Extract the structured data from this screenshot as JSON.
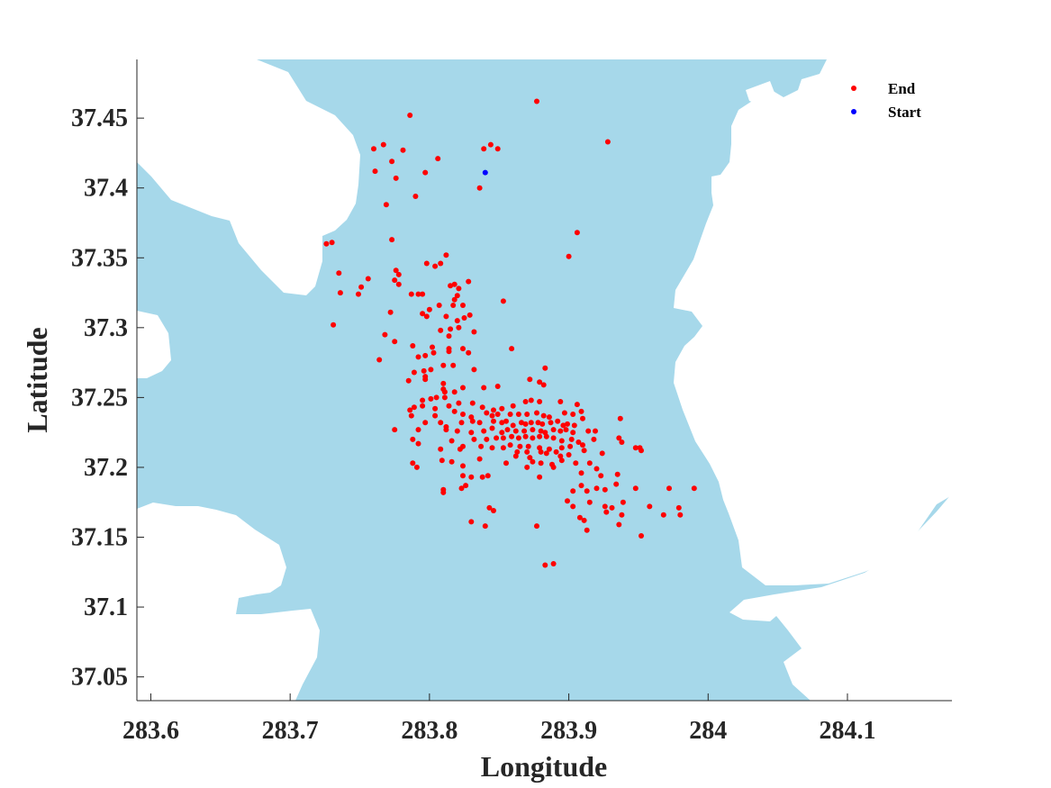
{
  "chart_data": {
    "type": "scatter",
    "xlabel": "Longitude",
    "ylabel": "Latitude",
    "xlim": [
      283.59,
      284.175
    ],
    "ylim": [
      37.033,
      37.492
    ],
    "xticks": [
      283.6,
      283.7,
      283.8,
      283.9,
      284,
      284.1
    ],
    "xtick_labels": [
      "283.6",
      "283.7",
      "283.8",
      "283.9",
      "284",
      "284.1"
    ],
    "yticks": [
      37.05,
      37.1,
      37.15,
      37.2,
      37.25,
      37.3,
      37.35,
      37.4,
      37.45
    ],
    "ytick_labels": [
      "37.05",
      "37.1",
      "37.15",
      "37.2",
      "37.25",
      "37.3",
      "37.35",
      "37.4",
      "37.45"
    ],
    "grid": false,
    "legend_position": "top-right",
    "water_color": "#a6d8ea",
    "land_color": "#ffffff",
    "series": [
      {
        "name": "End",
        "color": "#ff0000",
        "points": [
          [
            283.877,
            37.462
          ],
          [
            283.786,
            37.452
          ],
          [
            283.928,
            37.433
          ],
          [
            283.76,
            37.428
          ],
          [
            283.767,
            37.431
          ],
          [
            283.781,
            37.427
          ],
          [
            283.844,
            37.431
          ],
          [
            283.839,
            37.428
          ],
          [
            283.849,
            37.428
          ],
          [
            283.773,
            37.419
          ],
          [
            283.806,
            37.421
          ],
          [
            283.761,
            37.412
          ],
          [
            283.776,
            37.407
          ],
          [
            283.797,
            37.411
          ],
          [
            283.836,
            37.4
          ],
          [
            283.79,
            37.394
          ],
          [
            283.769,
            37.388
          ],
          [
            283.906,
            37.368
          ],
          [
            283.773,
            37.363
          ],
          [
            283.726,
            37.36
          ],
          [
            283.73,
            37.361
          ],
          [
            283.812,
            37.352
          ],
          [
            283.9,
            37.351
          ],
          [
            283.798,
            37.346
          ],
          [
            283.804,
            37.344
          ],
          [
            283.808,
            37.346
          ],
          [
            283.735,
            37.339
          ],
          [
            283.776,
            37.341
          ],
          [
            283.778,
            37.338
          ],
          [
            283.775,
            37.334
          ],
          [
            283.756,
            37.335
          ],
          [
            283.751,
            37.329
          ],
          [
            283.818,
            37.331
          ],
          [
            283.787,
            37.324
          ],
          [
            283.792,
            37.324
          ],
          [
            283.795,
            37.324
          ],
          [
            283.778,
            37.331
          ],
          [
            283.815,
            37.33
          ],
          [
            283.821,
            37.328
          ],
          [
            283.828,
            37.333
          ],
          [
            283.82,
            37.323
          ],
          [
            283.818,
            37.32
          ],
          [
            283.736,
            37.325
          ],
          [
            283.749,
            37.324
          ],
          [
            283.8,
            37.313
          ],
          [
            283.807,
            37.316
          ],
          [
            283.817,
            37.316
          ],
          [
            283.824,
            37.316
          ],
          [
            283.853,
            37.319
          ],
          [
            283.772,
            37.311
          ],
          [
            283.795,
            37.31
          ],
          [
            283.798,
            37.308
          ],
          [
            283.812,
            37.308
          ],
          [
            283.825,
            37.307
          ],
          [
            283.829,
            37.309
          ],
          [
            283.82,
            37.305
          ],
          [
            283.815,
            37.299
          ],
          [
            283.808,
            37.298
          ],
          [
            283.731,
            37.302
          ],
          [
            283.821,
            37.3
          ],
          [
            283.832,
            37.297
          ],
          [
            283.768,
            37.295
          ],
          [
            283.814,
            37.294
          ],
          [
            283.775,
            37.29
          ],
          [
            283.788,
            37.287
          ],
          [
            283.802,
            37.286
          ],
          [
            283.814,
            37.285
          ],
          [
            283.824,
            37.285
          ],
          [
            283.803,
            37.282
          ],
          [
            283.797,
            37.28
          ],
          [
            283.792,
            37.279
          ],
          [
            283.814,
            37.283
          ],
          [
            283.828,
            37.282
          ],
          [
            283.859,
            37.285
          ],
          [
            283.764,
            37.277
          ],
          [
            283.81,
            37.273
          ],
          [
            283.817,
            37.273
          ],
          [
            283.832,
            37.27
          ],
          [
            283.801,
            37.27
          ],
          [
            283.796,
            37.269
          ],
          [
            283.789,
            37.268
          ],
          [
            283.797,
            37.265
          ],
          [
            283.797,
            37.263
          ],
          [
            283.81,
            37.26
          ],
          [
            283.811,
            37.254
          ],
          [
            283.818,
            37.254
          ],
          [
            283.824,
            37.257
          ],
          [
            283.811,
            37.25
          ],
          [
            283.805,
            37.25
          ],
          [
            283.801,
            37.249
          ],
          [
            283.795,
            37.248
          ],
          [
            283.785,
            37.262
          ],
          [
            283.81,
            37.256
          ],
          [
            283.839,
            37.257
          ],
          [
            283.849,
            37.258
          ],
          [
            283.879,
            37.261
          ],
          [
            283.882,
            37.259
          ],
          [
            283.872,
            37.263
          ],
          [
            283.883,
            37.271
          ],
          [
            283.894,
            37.247
          ],
          [
            283.879,
            37.247
          ],
          [
            283.873,
            37.248
          ],
          [
            283.869,
            37.247
          ],
          [
            283.86,
            37.244
          ],
          [
            283.852,
            37.242
          ],
          [
            283.846,
            37.241
          ],
          [
            283.838,
            37.243
          ],
          [
            283.831,
            37.246
          ],
          [
            283.821,
            37.246
          ],
          [
            283.814,
            37.244
          ],
          [
            283.804,
            37.242
          ],
          [
            283.795,
            37.244
          ],
          [
            283.789,
            37.243
          ],
          [
            283.786,
            37.241
          ],
          [
            283.787,
            37.237
          ],
          [
            283.804,
            37.237
          ],
          [
            283.818,
            37.24
          ],
          [
            283.824,
            37.238
          ],
          [
            283.83,
            37.236
          ],
          [
            283.841,
            37.239
          ],
          [
            283.845,
            37.237
          ],
          [
            283.849,
            37.238
          ],
          [
            283.858,
            37.238
          ],
          [
            283.864,
            37.238
          ],
          [
            283.87,
            37.238
          ],
          [
            283.877,
            37.239
          ],
          [
            283.882,
            37.237
          ],
          [
            283.886,
            37.236
          ],
          [
            283.897,
            37.239
          ],
          [
            283.903,
            37.238
          ],
          [
            283.906,
            37.245
          ],
          [
            283.909,
            37.24
          ],
          [
            283.797,
            37.232
          ],
          [
            283.808,
            37.232
          ],
          [
            283.812,
            37.229
          ],
          [
            283.823,
            37.232
          ],
          [
            283.831,
            37.233
          ],
          [
            283.836,
            37.232
          ],
          [
            283.846,
            37.233
          ],
          [
            283.852,
            37.232
          ],
          [
            283.855,
            37.233
          ],
          [
            283.86,
            37.23
          ],
          [
            283.866,
            37.232
          ],
          [
            283.869,
            37.231
          ],
          [
            283.873,
            37.232
          ],
          [
            283.878,
            37.232
          ],
          [
            283.881,
            37.231
          ],
          [
            283.887,
            37.232
          ],
          [
            283.892,
            37.233
          ],
          [
            283.896,
            37.23
          ],
          [
            283.899,
            37.231
          ],
          [
            283.904,
            37.23
          ],
          [
            283.91,
            37.235
          ],
          [
            283.937,
            37.235
          ],
          [
            283.775,
            37.227
          ],
          [
            283.792,
            37.227
          ],
          [
            283.812,
            37.227
          ],
          [
            283.82,
            37.226
          ],
          [
            283.83,
            37.225
          ],
          [
            283.839,
            37.226
          ],
          [
            283.845,
            37.228
          ],
          [
            283.852,
            37.225
          ],
          [
            283.856,
            37.227
          ],
          [
            283.862,
            37.226
          ],
          [
            283.868,
            37.226
          ],
          [
            283.874,
            37.227
          ],
          [
            283.88,
            37.226
          ],
          [
            283.883,
            37.225
          ],
          [
            283.889,
            37.227
          ],
          [
            283.894,
            37.226
          ],
          [
            283.898,
            37.227
          ],
          [
            283.903,
            37.225
          ],
          [
            283.914,
            37.226
          ],
          [
            283.919,
            37.226
          ],
          [
            283.832,
            37.22
          ],
          [
            283.841,
            37.22
          ],
          [
            283.848,
            37.221
          ],
          [
            283.853,
            37.221
          ],
          [
            283.859,
            37.222
          ],
          [
            283.864,
            37.221
          ],
          [
            283.869,
            37.222
          ],
          [
            283.874,
            37.221
          ],
          [
            283.879,
            37.222
          ],
          [
            283.884,
            37.222
          ],
          [
            283.889,
            37.221
          ],
          [
            283.895,
            37.219
          ],
          [
            283.902,
            37.22
          ],
          [
            283.907,
            37.218
          ],
          [
            283.918,
            37.22
          ],
          [
            283.936,
            37.221
          ],
          [
            283.816,
            37.219
          ],
          [
            283.824,
            37.215
          ],
          [
            283.837,
            37.215
          ],
          [
            283.845,
            37.214
          ],
          [
            283.853,
            37.214
          ],
          [
            283.858,
            37.216
          ],
          [
            283.865,
            37.215
          ],
          [
            283.871,
            37.215
          ],
          [
            283.879,
            37.214
          ],
          [
            283.886,
            37.213
          ],
          [
            283.895,
            37.214
          ],
          [
            283.901,
            37.215
          ],
          [
            283.91,
            37.216
          ],
          [
            283.938,
            37.218
          ],
          [
            283.948,
            37.214
          ],
          [
            283.951,
            37.214
          ],
          [
            283.863,
            37.211
          ],
          [
            283.87,
            37.211
          ],
          [
            283.88,
            37.211
          ],
          [
            283.884,
            37.21
          ],
          [
            283.891,
            37.211
          ],
          [
            283.894,
            37.208
          ],
          [
            283.9,
            37.209
          ],
          [
            283.911,
            37.212
          ],
          [
            283.924,
            37.21
          ],
          [
            283.952,
            37.212
          ],
          [
            283.788,
            37.22
          ],
          [
            283.792,
            37.217
          ],
          [
            283.808,
            37.213
          ],
          [
            283.822,
            37.213
          ],
          [
            283.788,
            37.203
          ],
          [
            283.791,
            37.2
          ],
          [
            283.809,
            37.205
          ],
          [
            283.816,
            37.204
          ],
          [
            283.824,
            37.201
          ],
          [
            283.836,
            37.206
          ],
          [
            283.855,
            37.203
          ],
          [
            283.862,
            37.208
          ],
          [
            283.872,
            37.207
          ],
          [
            283.874,
            37.204
          ],
          [
            283.88,
            37.203
          ],
          [
            283.888,
            37.202
          ],
          [
            283.895,
            37.205
          ],
          [
            283.905,
            37.203
          ],
          [
            283.915,
            37.203
          ],
          [
            283.87,
            37.2
          ],
          [
            283.889,
            37.2
          ],
          [
            283.92,
            37.199
          ],
          [
            283.824,
            37.194
          ],
          [
            283.83,
            37.193
          ],
          [
            283.838,
            37.193
          ],
          [
            283.842,
            37.194
          ],
          [
            283.879,
            37.193
          ],
          [
            283.909,
            37.196
          ],
          [
            283.923,
            37.194
          ],
          [
            283.935,
            37.195
          ],
          [
            283.826,
            37.187
          ],
          [
            283.823,
            37.185
          ],
          [
            283.81,
            37.182
          ],
          [
            283.81,
            37.184
          ],
          [
            283.903,
            37.183
          ],
          [
            283.909,
            37.187
          ],
          [
            283.913,
            37.183
          ],
          [
            283.92,
            37.185
          ],
          [
            283.926,
            37.184
          ],
          [
            283.934,
            37.188
          ],
          [
            283.948,
            37.185
          ],
          [
            283.972,
            37.185
          ],
          [
            283.99,
            37.185
          ],
          [
            283.899,
            37.176
          ],
          [
            283.915,
            37.175
          ],
          [
            283.926,
            37.172
          ],
          [
            283.931,
            37.171
          ],
          [
            283.939,
            37.175
          ],
          [
            283.958,
            37.172
          ],
          [
            283.979,
            37.171
          ],
          [
            283.843,
            37.171
          ],
          [
            283.846,
            37.169
          ],
          [
            283.903,
            37.172
          ],
          [
            283.927,
            37.168
          ],
          [
            283.938,
            37.166
          ],
          [
            283.968,
            37.166
          ],
          [
            283.98,
            37.166
          ],
          [
            283.908,
            37.164
          ],
          [
            283.911,
            37.162
          ],
          [
            283.83,
            37.161
          ],
          [
            283.84,
            37.158
          ],
          [
            283.877,
            37.158
          ],
          [
            283.936,
            37.159
          ],
          [
            283.913,
            37.155
          ],
          [
            283.952,
            37.151
          ],
          [
            283.883,
            37.13
          ],
          [
            283.889,
            37.131
          ]
        ]
      },
      {
        "name": "Start",
        "color": "#0000ff",
        "points": [
          [
            283.84,
            37.411
          ]
        ]
      }
    ]
  }
}
